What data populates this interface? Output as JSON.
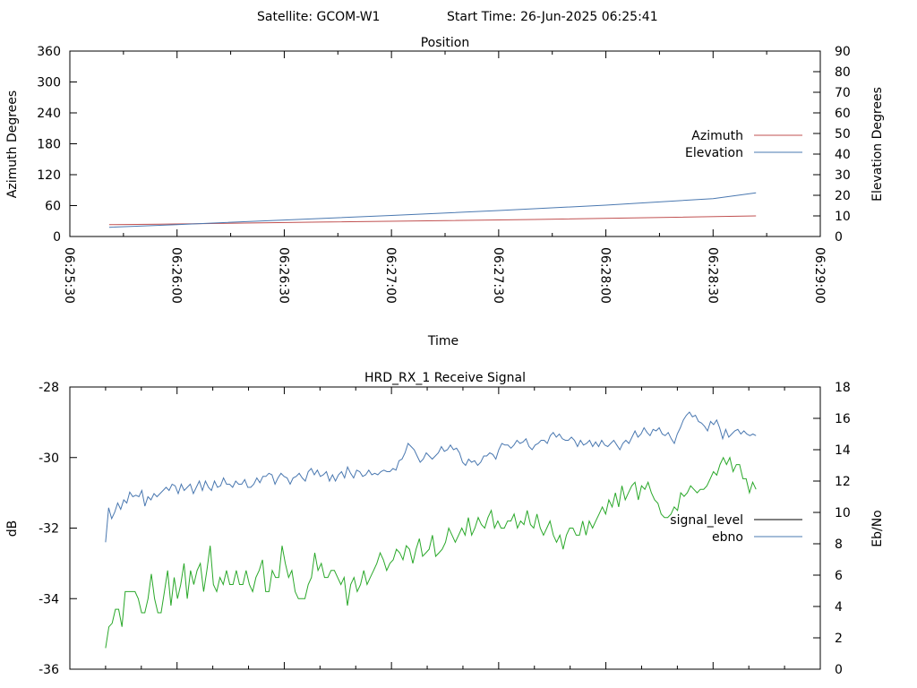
{
  "header": {
    "satellite_label": "Satellite: GCOM-W1",
    "start_time_label": "Start Time: 26-Jun-2025 06:25:41"
  },
  "colors": {
    "azimuth": "#c05050",
    "elevation": "#4a78b0",
    "signal_level": "#000000",
    "ebno_legend": "#4a78b0",
    "signal_curve": "#2aa82a",
    "ebno_curve": "#4a78b0"
  },
  "chart_data": [
    {
      "type": "line",
      "title": "Position",
      "xlabel": "Time",
      "ylabel": "Azimuth Degrees",
      "y2label": "Elevation Degrees",
      "x_ticks": [
        "06:25:30",
        "06:26:00",
        "06:26:30",
        "06:27:00",
        "06:27:30",
        "06:28:00",
        "06:28:30",
        "06:29:00"
      ],
      "xlim_seconds": [
        0,
        210
      ],
      "ylim": [
        0,
        360
      ],
      "y_ticks": [
        0,
        60,
        120,
        180,
        240,
        300,
        360
      ],
      "y2lim": [
        0,
        90
      ],
      "y2_ticks": [
        0,
        10,
        20,
        30,
        40,
        50,
        60,
        70,
        80,
        90
      ],
      "legend_position": "right",
      "series": [
        {
          "name": "Azimuth",
          "axis": "left",
          "x": [
            11,
            25,
            70,
            130,
            192
          ],
          "values": [
            23,
            24,
            28,
            33,
            40
          ]
        },
        {
          "name": "Elevation",
          "axis": "right",
          "x": [
            11,
            30,
            60,
            90,
            120,
            150,
            180,
            192
          ],
          "values": [
            4.5,
            5.8,
            8.0,
            10.2,
            12.6,
            15.2,
            18.4,
            21.2
          ]
        }
      ]
    },
    {
      "type": "line",
      "title": "HRD_RX_1 Receive Signal",
      "ylabel": "dB",
      "y2label": "Eb/No",
      "ylim": [
        -36,
        -28
      ],
      "y_ticks": [
        -36,
        -34,
        -32,
        -30,
        -28
      ],
      "y2lim": [
        0,
        18
      ],
      "y2_ticks": [
        0,
        2,
        4,
        6,
        8,
        10,
        12,
        14,
        16,
        18
      ],
      "legend_position": "right",
      "x_range_seconds": [
        10,
        192
      ],
      "series": [
        {
          "name": "signal_level",
          "axis": "left",
          "values": [
            -35.4,
            -34.8,
            -34.7,
            -34.3,
            -34.3,
            -34.8,
            -33.8,
            -33.8,
            -33.8,
            -33.8,
            -34.0,
            -34.4,
            -34.4,
            -34.0,
            -33.3,
            -34.0,
            -34.4,
            -34.4,
            -33.8,
            -33.2,
            -34.2,
            -33.4,
            -34.0,
            -33.6,
            -33.0,
            -34.0,
            -33.2,
            -33.6,
            -33.2,
            -33.0,
            -33.8,
            -33.2,
            -32.5,
            -33.6,
            -33.8,
            -33.4,
            -33.6,
            -33.2,
            -33.6,
            -33.6,
            -33.2,
            -33.6,
            -33.6,
            -33.2,
            -33.6,
            -33.8,
            -33.4,
            -33.2,
            -32.9,
            -33.8,
            -33.8,
            -33.2,
            -33.4,
            -33.4,
            -32.5,
            -33.0,
            -33.4,
            -33.2,
            -33.8,
            -34.0,
            -34.0,
            -34.0,
            -33.6,
            -33.4,
            -32.7,
            -33.2,
            -33.0,
            -33.4,
            -33.4,
            -33.2,
            -33.2,
            -33.4,
            -33.6,
            -33.4,
            -34.2,
            -33.6,
            -33.4,
            -33.8,
            -33.6,
            -33.2,
            -33.6,
            -33.4,
            -33.2,
            -33.0,
            -32.7,
            -32.9,
            -33.2,
            -33.0,
            -32.9,
            -32.6,
            -32.7,
            -32.9,
            -32.5,
            -32.6,
            -33.0,
            -32.6,
            -32.3,
            -32.8,
            -32.7,
            -32.6,
            -32.2,
            -32.8,
            -32.7,
            -32.6,
            -32.4,
            -32.0,
            -32.2,
            -32.4,
            -32.2,
            -32.0,
            -32.2,
            -31.7,
            -32.2,
            -32.0,
            -31.7,
            -31.9,
            -32.0,
            -31.7,
            -31.5,
            -32.0,
            -31.8,
            -32.0,
            -32.0,
            -31.8,
            -31.8,
            -31.6,
            -32.0,
            -31.8,
            -31.9,
            -31.5,
            -31.9,
            -32.0,
            -31.6,
            -32.0,
            -32.2,
            -32.0,
            -31.8,
            -32.2,
            -32.4,
            -32.2,
            -32.6,
            -32.2,
            -32.0,
            -32.0,
            -32.2,
            -32.2,
            -31.8,
            -32.2,
            -31.8,
            -32.0,
            -31.8,
            -31.6,
            -31.4,
            -31.6,
            -31.2,
            -31.4,
            -31.0,
            -31.4,
            -30.8,
            -31.2,
            -31.0,
            -30.8,
            -30.7,
            -31.2,
            -30.8,
            -30.9,
            -30.7,
            -31.0,
            -31.2,
            -31.3,
            -31.6,
            -31.7,
            -31.7,
            -31.6,
            -31.4,
            -31.5,
            -31.0,
            -31.1,
            -31.0,
            -30.8,
            -30.9,
            -31.0,
            -30.9,
            -30.9,
            -30.8,
            -30.6,
            -30.4,
            -30.5,
            -30.2,
            -30.0,
            -30.2,
            -30.0,
            -30.4,
            -30.2,
            -30.2,
            -30.6,
            -30.6,
            -31.0,
            -30.7,
            -30.9
          ]
        },
        {
          "name": "ebno",
          "axis": "right",
          "values": [
            8.1,
            10.3,
            9.6,
            10.0,
            10.6,
            10.2,
            10.8,
            10.6,
            11.3,
            11.0,
            11.1,
            11.0,
            11.4,
            10.4,
            11.0,
            10.8,
            11.2,
            11.0,
            11.2,
            11.4,
            11.6,
            11.4,
            11.8,
            11.7,
            11.2,
            11.8,
            11.4,
            11.6,
            11.8,
            11.2,
            11.6,
            12.0,
            11.4,
            12.0,
            11.6,
            11.4,
            12.0,
            11.6,
            11.7,
            12.2,
            11.8,
            11.8,
            11.6,
            12.0,
            11.8,
            11.8,
            12.1,
            11.6,
            11.6,
            11.8,
            12.2,
            11.9,
            12.3,
            12.3,
            12.5,
            12.4,
            11.8,
            12.2,
            12.5,
            12.3,
            12.2,
            11.8,
            12.2,
            12.3,
            12.5,
            12.2,
            12.0,
            12.6,
            12.8,
            12.4,
            12.7,
            12.3,
            12.4,
            12.6,
            12.0,
            12.4,
            12.0,
            12.4,
            12.6,
            12.2,
            12.9,
            12.5,
            12.2,
            12.7,
            12.6,
            12.3,
            12.4,
            12.7,
            12.4,
            12.5,
            12.4,
            12.6,
            12.7,
            12.6,
            12.6,
            12.8,
            12.7,
            13.3,
            13.4,
            13.8,
            14.4,
            14.2,
            14.0,
            13.6,
            13.2,
            13.4,
            13.8,
            13.6,
            13.4,
            13.6,
            13.8,
            14.2,
            13.9,
            14.0,
            14.3,
            14.0,
            14.1,
            13.8,
            13.2,
            13.0,
            13.4,
            13.2,
            13.3,
            13.0,
            13.2,
            13.6,
            13.6,
            13.8,
            13.7,
            13.4,
            14.0,
            14.4,
            14.3,
            14.3,
            14.1,
            14.3,
            14.6,
            14.4,
            14.5,
            14.7,
            14.2,
            14.0,
            14.3,
            14.4,
            14.6,
            14.6,
            14.4,
            14.9,
            15.1,
            14.8,
            15.0,
            14.7,
            14.6,
            14.6,
            14.8,
            14.6,
            14.2,
            14.6,
            14.3,
            14.4,
            14.6,
            14.2,
            14.5,
            14.2,
            14.6,
            14.3,
            14.2,
            14.4,
            14.6,
            14.3,
            14.0,
            14.4,
            14.6,
            14.4,
            14.8,
            15.2,
            14.8,
            15.0,
            15.4,
            15.1,
            14.9,
            15.3,
            15.2,
            15.4,
            15.0,
            14.9,
            15.1,
            14.7,
            14.4,
            15.0,
            15.4,
            15.9,
            16.2,
            16.4,
            16.1,
            16.2,
            15.8,
            15.7,
            15.5,
            15.2,
            15.8,
            15.6,
            15.9,
            15.4,
            14.7,
            15.3,
            14.8,
            15.0,
            15.2,
            15.3,
            15.0,
            15.2,
            15.0,
            14.9,
            15.0,
            14.9
          ]
        }
      ]
    }
  ]
}
